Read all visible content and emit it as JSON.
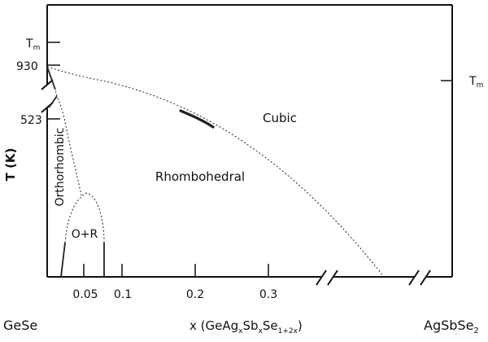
{
  "y_axis": {
    "label": "T  (K)",
    "ticks": {
      "tm": "T",
      "tm_sub": "m",
      "t930": "930",
      "t523": "523"
    }
  },
  "x_axis": {
    "ticks": {
      "t005": "0.05",
      "t01": "0.1",
      "t02": "0.2",
      "t03": "0.3"
    },
    "label_prefix": "x (GeAg",
    "label_x1": "x",
    "label_sb": "Sb",
    "label_x2": "x",
    "label_se": "Se",
    "label_sub": "1+2x",
    "label_suffix": ")"
  },
  "endpoints": {
    "left": "GeSe",
    "right_main": "AgSbSe",
    "right_sub": "2"
  },
  "right_tm": {
    "main": "T",
    "sub": "m"
  },
  "regions": {
    "cubic": "Cubic",
    "rhombohedral": "Rhombohedral",
    "orthorhombic": "Orthorhombic",
    "o_plus_r": "O+R"
  }
}
